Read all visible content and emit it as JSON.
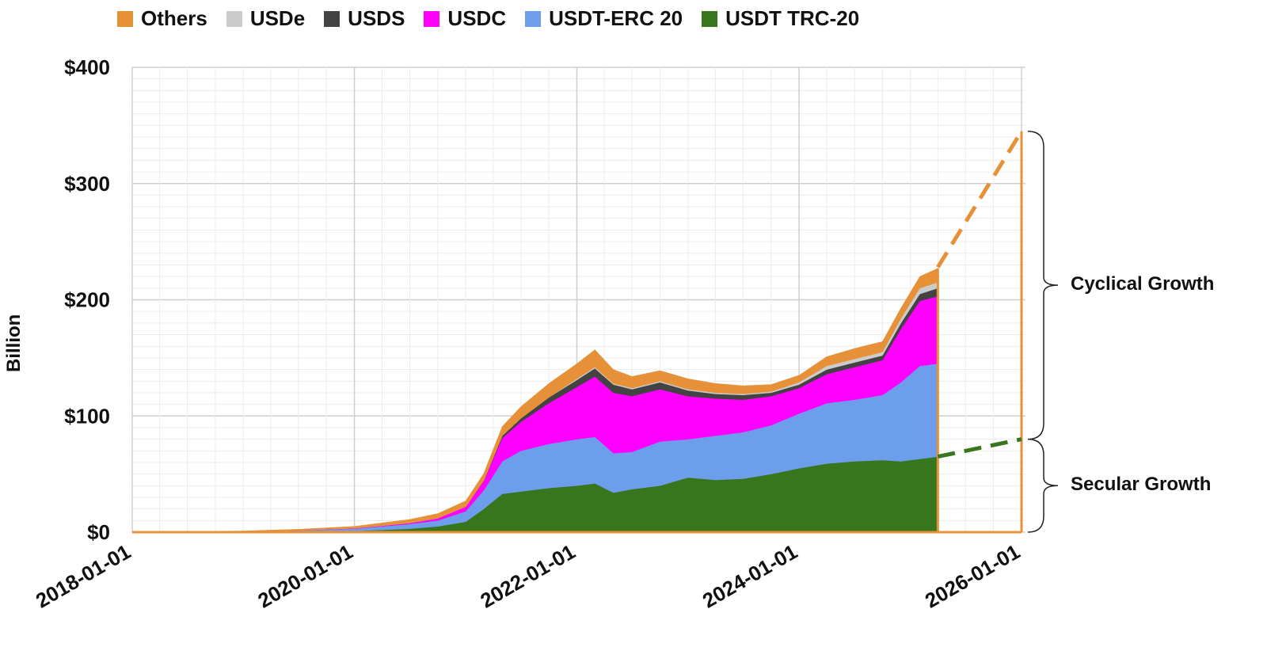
{
  "chart_data": {
    "type": "area",
    "stacked": true,
    "xlabel": "",
    "ylabel": "Billion",
    "ylim": [
      0,
      400
    ],
    "xlim": [
      "2018-01-01",
      "2026-01-01"
    ],
    "x_ticks": [
      "2018-01-01",
      "2020-01-01",
      "2022-01-01",
      "2024-01-01",
      "2026-01-01"
    ],
    "y_ticks": [
      "$0",
      "$100",
      "$200",
      "$300",
      "$400"
    ],
    "y_tick_values": [
      0,
      100,
      200,
      300,
      400
    ],
    "grid": true,
    "legend_position": "top-left",
    "x": [
      "2018-01-01",
      "2019-01-01",
      "2019-07-01",
      "2020-01-01",
      "2020-04-01",
      "2020-07-01",
      "2020-10-01",
      "2021-01-01",
      "2021-03-01",
      "2021-05-01",
      "2021-07-01",
      "2021-10-01",
      "2022-01-01",
      "2022-03-01",
      "2022-05-01",
      "2022-07-01",
      "2022-10-01",
      "2023-01-01",
      "2023-04-01",
      "2023-07-01",
      "2023-10-01",
      "2024-01-01",
      "2024-04-01",
      "2024-07-01",
      "2024-10-01",
      "2024-12-01",
      "2025-02-01",
      "2025-04-01"
    ],
    "series": [
      {
        "name": "USDT TRC-20",
        "color": "#38761d",
        "values": [
          0,
          0.3,
          0.6,
          1,
          2,
          3,
          5,
          9,
          20,
          33,
          35,
          38,
          40,
          42,
          34,
          37,
          40,
          47,
          45,
          46,
          50,
          55,
          59,
          61,
          62,
          61,
          63,
          65
        ]
      },
      {
        "name": "USDT-ERC 20",
        "color": "#6d9eeb",
        "values": [
          0,
          0.2,
          0.8,
          2,
          3,
          4,
          5,
          9,
          16,
          28,
          35,
          38,
          40,
          40,
          34,
          32,
          38,
          33,
          38,
          40,
          42,
          47,
          52,
          53,
          56,
          68,
          80,
          80
        ]
      },
      {
        "name": "USDC",
        "color": "#ff00ff",
        "values": [
          0,
          0.1,
          0.2,
          0.4,
          0.6,
          1,
          2,
          4,
          8,
          20,
          25,
          35,
          45,
          52,
          52,
          48,
          45,
          37,
          32,
          28,
          25,
          22,
          25,
          28,
          30,
          46,
          56,
          58
        ]
      },
      {
        "name": "USDS",
        "color": "#434343",
        "values": [
          0,
          0,
          0,
          0,
          0,
          0,
          0,
          0,
          0.5,
          2,
          3,
          5,
          6,
          7,
          7,
          6,
          6,
          5,
          4,
          4,
          3,
          3,
          4,
          4,
          4,
          5,
          6,
          7
        ]
      },
      {
        "name": "USDe",
        "color": "#cccccc",
        "values": [
          0,
          0,
          0,
          0,
          0,
          0,
          0,
          0,
          0,
          0,
          0,
          0,
          1,
          1,
          1,
          1,
          1,
          1,
          1,
          1,
          1,
          2,
          3,
          3,
          3,
          4,
          5,
          5
        ]
      },
      {
        "name": "Others",
        "color": "#e69138",
        "values": [
          0,
          0.4,
          0.9,
          1.6,
          2.4,
          3,
          4,
          5,
          6,
          8,
          10,
          12,
          13,
          15,
          12,
          10,
          9,
          9,
          8,
          7,
          6,
          6,
          8,
          9,
          9,
          9,
          10,
          12
        ]
      }
    ],
    "projections": [
      {
        "series": "Others",
        "color": "#e69138",
        "from": [
          "2025-04-01",
          228
        ],
        "to": [
          "2026-01-01",
          345
        ]
      },
      {
        "series": "USDT TRC-20",
        "color": "#38761d",
        "from": [
          "2025-04-01",
          65
        ],
        "to": [
          "2026-01-01",
          80
        ]
      }
    ],
    "annotations": [
      {
        "text": "Cyclical Growth",
        "range": [
          80,
          345
        ]
      },
      {
        "text": "Secular Growth",
        "range": [
          0,
          80
        ]
      }
    ]
  }
}
